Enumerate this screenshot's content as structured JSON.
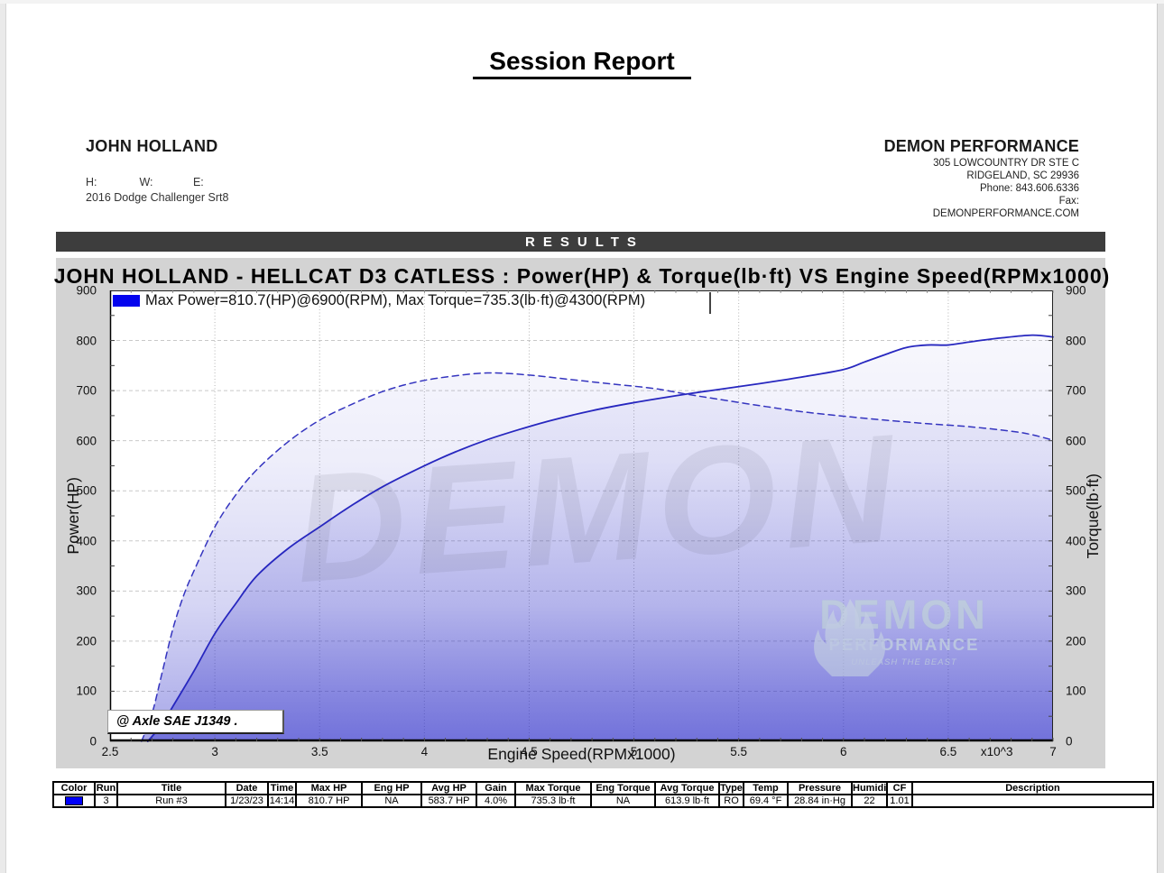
{
  "page": {
    "title": "Session Report"
  },
  "customer": {
    "name": "JOHN HOLLAND",
    "h_label": "H:",
    "w_label": "W:",
    "e_label": "E:",
    "vehicle": "2016 Dodge Challenger Srt8"
  },
  "shop": {
    "name": "DEMON PERFORMANCE",
    "address1": "305 LOWCOUNTRY DR STE C",
    "address2": "RIDGELAND, SC 29936",
    "phone": "Phone: 843.606.6336",
    "fax": "Fax:",
    "website": "DEMONPERFORMANCE.COM"
  },
  "results_bar": {
    "label": "RESULTS"
  },
  "chart": {
    "title": "JOHN HOLLAND - HELLCAT D3 CATLESS : Power(HP) & Torque(lb·ft) VS Engine Speed(RPMx1000)",
    "legend": "Max Power=810.7(HP)@6900(RPM), Max Torque=735.3(lb·ft)@4300(RPM)",
    "annotation": "@ Axle SAE J1349 .",
    "x10_label": "x10^3",
    "watermark_big": "DEMON",
    "watermark": {
      "line1": "DEMON",
      "line2": "PERFORMANCE",
      "line3": "UNLEASH THE BEAST"
    }
  },
  "chart_data": {
    "type": "line",
    "title": "JOHN HOLLAND - HELLCAT D3 CATLESS : Power(HP) & Torque(lb·ft) VS Engine Speed(RPMx1000)",
    "xlabel": "Engine Speed(RPMx1000)",
    "ylabel_left": "Power(HP)",
    "ylabel_right": "Torque(lb·ft)",
    "xlim": [
      2.5,
      7
    ],
    "ylim": [
      0,
      900
    ],
    "x_ticks": [
      2.5,
      3,
      3.5,
      4,
      4.5,
      5,
      5.5,
      6,
      6.5,
      7
    ],
    "y_ticks": [
      0,
      100,
      200,
      300,
      400,
      500,
      600,
      700,
      800,
      900
    ],
    "grid": true,
    "legend_position": "top-left",
    "legend_label": "Max Power=810.7(HP)@6900(RPM), Max Torque=735.3(lb·ft)@4300(RPM)",
    "max_power": {
      "value": 810.7,
      "unit": "HP",
      "rpm": 6900
    },
    "max_torque": {
      "value": 735.3,
      "unit": "lb·ft",
      "rpm": 4300
    },
    "series": [
      {
        "name": "Power (HP)",
        "style": "solid",
        "color": "#2727bf",
        "points": [
          [
            2.68,
            0
          ],
          [
            2.75,
            35
          ],
          [
            2.8,
            70
          ],
          [
            2.9,
            140
          ],
          [
            3.0,
            215
          ],
          [
            3.1,
            275
          ],
          [
            3.2,
            330
          ],
          [
            3.35,
            385
          ],
          [
            3.5,
            428
          ],
          [
            3.65,
            470
          ],
          [
            3.8,
            508
          ],
          [
            4.0,
            550
          ],
          [
            4.15,
            578
          ],
          [
            4.3,
            602
          ],
          [
            4.45,
            622
          ],
          [
            4.6,
            640
          ],
          [
            4.8,
            660
          ],
          [
            5.0,
            676
          ],
          [
            5.25,
            693
          ],
          [
            5.4,
            702
          ],
          [
            5.6,
            714
          ],
          [
            5.8,
            727
          ],
          [
            6.0,
            742
          ],
          [
            6.1,
            757
          ],
          [
            6.2,
            772
          ],
          [
            6.3,
            786
          ],
          [
            6.4,
            791
          ],
          [
            6.5,
            791
          ],
          [
            6.6,
            797
          ],
          [
            6.75,
            805
          ],
          [
            6.9,
            810.7
          ],
          [
            7.0,
            807
          ]
        ]
      },
      {
        "name": "Torque (lb·ft)",
        "style": "dashed",
        "color": "#3434bf",
        "points": [
          [
            2.65,
            0
          ],
          [
            2.7,
            55
          ],
          [
            2.75,
            140
          ],
          [
            2.8,
            225
          ],
          [
            2.85,
            290
          ],
          [
            2.9,
            340
          ],
          [
            3.0,
            428
          ],
          [
            3.1,
            492
          ],
          [
            3.2,
            542
          ],
          [
            3.35,
            598
          ],
          [
            3.5,
            641
          ],
          [
            3.65,
            672
          ],
          [
            3.8,
            698
          ],
          [
            3.95,
            716
          ],
          [
            4.1,
            727
          ],
          [
            4.3,
            735.3
          ],
          [
            4.5,
            731
          ],
          [
            4.7,
            722
          ],
          [
            4.9,
            713
          ],
          [
            5.1,
            704
          ],
          [
            5.25,
            693
          ],
          [
            5.4,
            683
          ],
          [
            5.6,
            670
          ],
          [
            5.8,
            658
          ],
          [
            6.0,
            649
          ],
          [
            6.2,
            641
          ],
          [
            6.4,
            634
          ],
          [
            6.6,
            628
          ],
          [
            6.8,
            619
          ],
          [
            6.9,
            612
          ],
          [
            7.0,
            601
          ]
        ]
      }
    ]
  },
  "table": {
    "columns": [
      "Color",
      "Run",
      "Title",
      "Date",
      "Time",
      "Max HP",
      "Eng HP",
      "Avg HP",
      "Gain",
      "Max Torque",
      "Eng Torque",
      "Avg Torque",
      "Type",
      "Temp",
      "Pressure",
      "Humidity",
      "CF",
      "Description"
    ],
    "rows": [
      [
        "#0000fa",
        "3",
        "Run #3",
        "1/23/23",
        "14:14",
        "810.7 HP",
        "NA",
        "583.7 HP",
        "4.0%",
        "735.3 lb·ft",
        "NA",
        "613.9 lb·ft",
        "RO",
        "69.4 °F",
        "28.84 in·Hg",
        "22",
        "1.01",
        ""
      ]
    ]
  }
}
